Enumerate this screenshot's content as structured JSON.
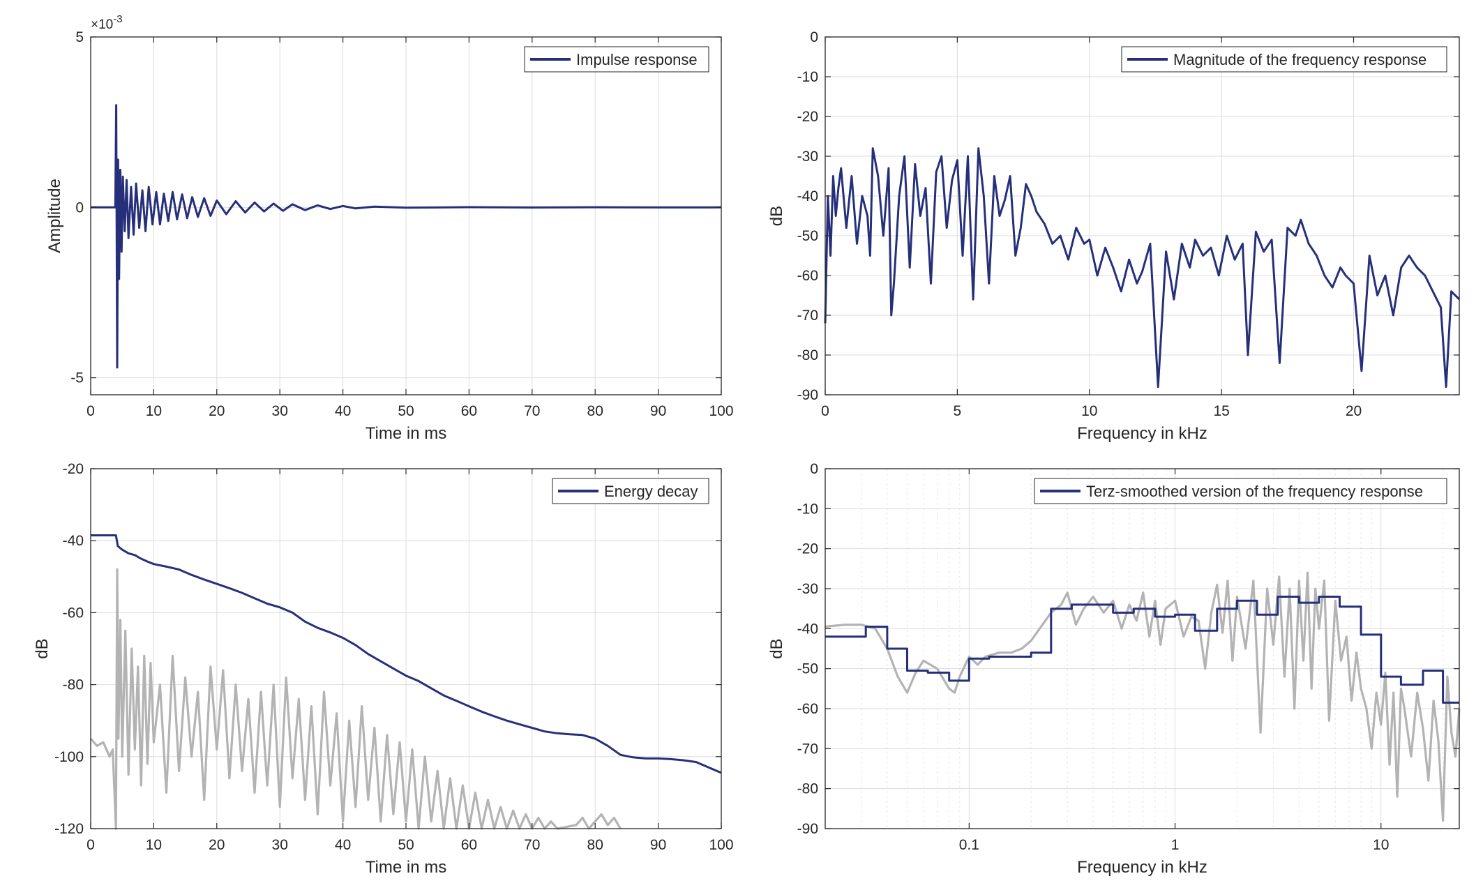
{
  "colors": {
    "series": "#26307a",
    "reference": "#b3b3b3",
    "grid": "#dcdcdc",
    "axis": "#262626"
  },
  "chart_data": [
    {
      "id": "impulse",
      "type": "line",
      "title": "",
      "xlabel": "Time in ms",
      "ylabel": "Amplitude",
      "xscale": "linear",
      "xlim": [
        0,
        100
      ],
      "ylim": [
        -5.5,
        5
      ],
      "xticks": [
        0,
        10,
        20,
        30,
        40,
        50,
        60,
        70,
        80,
        90,
        100
      ],
      "xtick_labels": [
        "0",
        "10",
        "20",
        "30",
        "40",
        "50",
        "60",
        "70",
        "80",
        "90",
        "100"
      ],
      "yticks": [
        -5,
        0,
        5
      ],
      "ytick_labels": [
        "-5",
        "0",
        "5"
      ],
      "y_exponent": "×10",
      "y_exponent_power": "-3",
      "grid": true,
      "legend_loc": "top-right",
      "series": [
        {
          "name": "Impulse response",
          "color": "#26307a",
          "x": [
            0,
            2,
            3.9,
            4.05,
            4.2,
            4.35,
            4.5,
            4.7,
            4.9,
            5.1,
            5.4,
            5.7,
            6.0,
            6.4,
            6.8,
            7.2,
            7.7,
            8.2,
            8.7,
            9.2,
            9.8,
            10.4,
            11.0,
            11.6,
            12.3,
            13.0,
            13.7,
            14.5,
            15.3,
            16.1,
            17.0,
            18.0,
            19.0,
            20.0,
            21.5,
            23.0,
            24.5,
            26.0,
            27.5,
            29.0,
            30.5,
            32.0,
            34.0,
            36.0,
            38.0,
            40.0,
            42.0,
            45.0,
            50.0,
            60.0,
            70.0,
            80.0,
            90.0,
            100.0
          ],
          "y": [
            0,
            0,
            0,
            3.0,
            -4.7,
            1.4,
            -2.1,
            1.1,
            -1.3,
            0.9,
            -0.7,
            0.8,
            -0.9,
            0.6,
            -0.8,
            0.7,
            -0.6,
            0.5,
            -0.7,
            0.6,
            -0.5,
            0.45,
            -0.5,
            0.4,
            -0.4,
            0.45,
            -0.35,
            0.38,
            -0.32,
            0.3,
            -0.28,
            0.27,
            -0.25,
            0.2,
            -0.2,
            0.18,
            -0.15,
            0.14,
            -0.12,
            0.11,
            -0.1,
            0.09,
            -0.08,
            0.06,
            -0.05,
            0.04,
            -0.03,
            0.02,
            -0.01,
            0.005,
            -0.004,
            0.003,
            -0.002,
            0
          ]
        }
      ]
    },
    {
      "id": "magnitude",
      "type": "line",
      "title": "",
      "xlabel": "Frequency in kHz",
      "ylabel": "dB",
      "xscale": "linear",
      "xlim": [
        0,
        24
      ],
      "ylim": [
        -90,
        0
      ],
      "xticks": [
        0,
        5,
        10,
        15,
        20
      ],
      "xtick_labels": [
        "0",
        "5",
        "10",
        "15",
        "20"
      ],
      "yticks": [
        0,
        -10,
        -20,
        -30,
        -40,
        -50,
        -60,
        -70,
        -80,
        -90
      ],
      "ytick_labels": [
        "0",
        "-10",
        "-20",
        "-30",
        "-40",
        "-50",
        "-60",
        "-70",
        "-80",
        "-90"
      ],
      "grid": true,
      "legend_loc": "top-right",
      "series": [
        {
          "name": "Magnitude of the frequency response",
          "color": "#26307a",
          "x": [
            0,
            0.1,
            0.2,
            0.3,
            0.4,
            0.5,
            0.6,
            0.8,
            1.0,
            1.2,
            1.4,
            1.6,
            1.7,
            1.8,
            2.0,
            2.2,
            2.4,
            2.5,
            2.6,
            2.8,
            3.0,
            3.2,
            3.4,
            3.6,
            3.8,
            4.0,
            4.2,
            4.4,
            4.6,
            4.8,
            5.0,
            5.2,
            5.4,
            5.6,
            5.8,
            6.0,
            6.2,
            6.4,
            6.6,
            6.8,
            7.0,
            7.2,
            7.4,
            7.6,
            7.8,
            8.0,
            8.3,
            8.6,
            8.9,
            9.2,
            9.5,
            9.8,
            10.0,
            10.3,
            10.6,
            10.9,
            11.2,
            11.5,
            11.8,
            12.0,
            12.3,
            12.6,
            12.9,
            13.2,
            13.5,
            13.8,
            14.0,
            14.3,
            14.6,
            14.9,
            15.2,
            15.5,
            15.8,
            16.0,
            16.3,
            16.6,
            16.9,
            17.2,
            17.5,
            17.8,
            18.0,
            18.3,
            18.6,
            18.9,
            19.2,
            19.5,
            19.7,
            20.0,
            20.3,
            20.6,
            20.9,
            21.2,
            21.5,
            21.8,
            22.1,
            22.4,
            22.7,
            23.0,
            23.3,
            23.5,
            23.7,
            24.0
          ],
          "y": [
            -72,
            -40,
            -55,
            -35,
            -45,
            -38,
            -33,
            -48,
            -35,
            -52,
            -40,
            -45,
            -55,
            -28,
            -35,
            -50,
            -33,
            -70,
            -62,
            -40,
            -30,
            -58,
            -32,
            -45,
            -38,
            -62,
            -34,
            -30,
            -48,
            -36,
            -31,
            -55,
            -30,
            -66,
            -28,
            -40,
            -62,
            -35,
            -45,
            -41,
            -35,
            -55,
            -48,
            -37,
            -40,
            -44,
            -47,
            -52,
            -50,
            -56,
            -48,
            -52,
            -51,
            -60,
            -53,
            -58,
            -64,
            -56,
            -62,
            -59,
            -52,
            -88,
            -54,
            -66,
            -52,
            -58,
            -51,
            -55,
            -53,
            -60,
            -50,
            -56,
            -52,
            -80,
            -49,
            -54,
            -51,
            -82,
            -48,
            -50,
            -46,
            -52,
            -55,
            -60,
            -63,
            -58,
            -60,
            -62,
            -84,
            -55,
            -65,
            -60,
            -70,
            -58,
            -55,
            -58,
            -60,
            -64,
            -68,
            -88,
            -64,
            -66
          ]
        }
      ]
    },
    {
      "id": "energy",
      "type": "line",
      "title": "",
      "xlabel": "Time in ms",
      "ylabel": "dB",
      "xscale": "linear",
      "xlim": [
        0,
        100
      ],
      "ylim": [
        -120,
        -20
      ],
      "xticks": [
        0,
        10,
        20,
        30,
        40,
        50,
        60,
        70,
        80,
        90,
        100
      ],
      "xtick_labels": [
        "0",
        "10",
        "20",
        "30",
        "40",
        "50",
        "60",
        "70",
        "80",
        "90",
        "100"
      ],
      "yticks": [
        -20,
        -40,
        -60,
        -80,
        -100,
        -120
      ],
      "ytick_labels": [
        "-20",
        "-40",
        "-60",
        "-80",
        "-100",
        "-120"
      ],
      "grid": true,
      "legend_loc": "top-right",
      "series": [
        {
          "name": "",
          "color": "#b3b3b3",
          "x": [
            0,
            1,
            2,
            3,
            3.5,
            4.0,
            4.2,
            4.4,
            4.7,
            5.0,
            5.5,
            6.0,
            6.5,
            7.0,
            7.5,
            8.0,
            8.5,
            9.0,
            9.5,
            10.0,
            11.0,
            12.0,
            13.0,
            14.0,
            15.0,
            16.0,
            17.0,
            18.0,
            19.0,
            20.0,
            21.0,
            22.0,
            23.0,
            24.0,
            25.0,
            26.0,
            27.0,
            28.0,
            29.0,
            30.0,
            31.0,
            32.0,
            33.0,
            34.0,
            35.0,
            36.0,
            37.0,
            38.0,
            39.0,
            40.0,
            41.0,
            42.0,
            43.0,
            44.0,
            45.0,
            46.0,
            47.0,
            48.0,
            49.0,
            50.0,
            51.0,
            52.0,
            53.0,
            54.0,
            55.0,
            56.0,
            57.0,
            58.0,
            59.0,
            60.0,
            61.0,
            62.0,
            63.0,
            64.0,
            65.0,
            66.0,
            67.0,
            68.0,
            69.0,
            70.0,
            71.0,
            72.0,
            73.0,
            74.0,
            77.0,
            78.0,
            79.0,
            80.0,
            81.0,
            82.0,
            83.0,
            84.0
          ],
          "y": [
            -95,
            -97,
            -96,
            -100,
            -98,
            -120,
            -48,
            -95,
            -62,
            -100,
            -65,
            -105,
            -70,
            -98,
            -75,
            -108,
            -72,
            -102,
            -74,
            -96,
            -80,
            -110,
            -72,
            -104,
            -78,
            -100,
            -82,
            -112,
            -75,
            -98,
            -76,
            -106,
            -80,
            -104,
            -84,
            -110,
            -82,
            -108,
            -80,
            -114,
            -78,
            -106,
            -84,
            -112,
            -86,
            -116,
            -82,
            -108,
            -88,
            -118,
            -90,
            -114,
            -86,
            -112,
            -92,
            -118,
            -94,
            -116,
            -96,
            -118,
            -98,
            -120,
            -100,
            -118,
            -104,
            -120,
            -106,
            -120,
            -108,
            -120,
            -110,
            -120,
            -112,
            -120,
            -114,
            -120,
            -115,
            -120,
            -116,
            -120,
            -117,
            -120,
            -118,
            -120,
            -119,
            -117,
            -120,
            -118,
            -116,
            -119,
            -117,
            -120
          ]
        },
        {
          "name": "Energy decay",
          "color": "#26307a",
          "x": [
            0,
            4.0,
            4.3,
            5.0,
            6.0,
            7.0,
            8.0,
            9.0,
            10.0,
            12.0,
            14.0,
            16.0,
            18.0,
            20.0,
            22.0,
            24.0,
            26.0,
            28.0,
            30.0,
            32.0,
            34.0,
            36.0,
            38.0,
            40.0,
            42.0,
            44.0,
            46.0,
            48.0,
            50.0,
            52.0,
            54.0,
            56.0,
            58.0,
            60.0,
            62.0,
            64.0,
            66.0,
            68.0,
            70.0,
            72.0,
            74.0,
            76.0,
            78.0,
            80.0,
            82.0,
            84.0,
            86.0,
            88.0,
            90.0,
            92.0,
            94.0,
            96.0,
            98.0,
            100.0
          ],
          "y": [
            -38.5,
            -38.5,
            -41.5,
            -42.5,
            -43.5,
            -44.0,
            -45.0,
            -45.8,
            -46.5,
            -47.2,
            -48.0,
            -49.5,
            -50.8,
            -52.0,
            -53.2,
            -54.5,
            -56.0,
            -57.5,
            -58.5,
            -60.0,
            -62.5,
            -64.2,
            -65.5,
            -67.0,
            -69.0,
            -71.5,
            -73.5,
            -75.5,
            -77.5,
            -79.0,
            -81.0,
            -83.0,
            -84.5,
            -86.0,
            -87.5,
            -88.8,
            -90.0,
            -91.0,
            -92.0,
            -93.0,
            -93.5,
            -93.8,
            -94.0,
            -95.0,
            -97.0,
            -99.5,
            -100.2,
            -100.5,
            -100.5,
            -100.7,
            -101.0,
            -101.5,
            -103.0,
            -104.5
          ]
        }
      ]
    },
    {
      "id": "terz",
      "type": "line",
      "title": "",
      "xlabel": "Frequency in kHz",
      "ylabel": "dB",
      "xscale": "log",
      "xlim": [
        0.02,
        24
      ],
      "ylim": [
        -90,
        0
      ],
      "xticks": [
        0.1,
        1,
        10
      ],
      "xtick_labels": [
        "0.1",
        "1",
        "10"
      ],
      "yticks": [
        0,
        -10,
        -20,
        -30,
        -40,
        -50,
        -60,
        -70,
        -80,
        -90
      ],
      "ytick_labels": [
        "0",
        "-10",
        "-20",
        "-30",
        "-40",
        "-50",
        "-60",
        "-70",
        "-80",
        "-90"
      ],
      "grid": true,
      "legend_loc": "top-right",
      "series": [
        {
          "name": "",
          "color": "#b3b3b3",
          "x": [
            0.02,
            0.025,
            0.03,
            0.035,
            0.04,
            0.045,
            0.05,
            0.055,
            0.06,
            0.07,
            0.08,
            0.085,
            0.09,
            0.1,
            0.11,
            0.12,
            0.14,
            0.16,
            0.18,
            0.2,
            0.22,
            0.25,
            0.28,
            0.3,
            0.33,
            0.36,
            0.4,
            0.45,
            0.5,
            0.55,
            0.6,
            0.65,
            0.7,
            0.75,
            0.8,
            0.85,
            0.9,
            1.0,
            1.1,
            1.2,
            1.3,
            1.4,
            1.5,
            1.6,
            1.7,
            1.8,
            1.9,
            2.0,
            2.2,
            2.4,
            2.6,
            2.8,
            3.0,
            3.2,
            3.4,
            3.6,
            3.8,
            4.0,
            4.2,
            4.4,
            4.6,
            4.8,
            5.0,
            5.3,
            5.6,
            6.0,
            6.4,
            6.8,
            7.2,
            7.6,
            8.0,
            8.5,
            9.0,
            9.5,
            10.0,
            10.5,
            11.0,
            11.5,
            12.0,
            12.5,
            13.0,
            14.0,
            15.0,
            16.0,
            17.0,
            18.0,
            19.0,
            20.0,
            21.0,
            22.0,
            23.0,
            24.0
          ],
          "y": [
            -39.5,
            -39,
            -39,
            -40,
            -45,
            -52,
            -56,
            -51,
            -48,
            -50,
            -55,
            -56,
            -52,
            -47,
            -49,
            -47,
            -46,
            -46,
            -45,
            -43,
            -40,
            -36,
            -34,
            -31,
            -39,
            -35,
            -32,
            -36,
            -33,
            -40,
            -34,
            -38,
            -31,
            -42,
            -33,
            -44,
            -35,
            -33,
            -42,
            -37,
            -38,
            -50,
            -36,
            -29,
            -41,
            -28,
            -48,
            -32,
            -45,
            -28,
            -66,
            -30,
            -44,
            -27,
            -52,
            -30,
            -60,
            -28,
            -48,
            -26,
            -55,
            -30,
            -40,
            -28,
            -63,
            -33,
            -48,
            -42,
            -58,
            -46,
            -55,
            -60,
            -70,
            -56,
            -64,
            -51,
            -74,
            -56,
            -82,
            -55,
            -60,
            -72,
            -56,
            -65,
            -78,
            -58,
            -68,
            -88,
            -52,
            -66,
            -72,
            -60
          ]
        },
        {
          "name": "Terz-smoothed version of the frequency response",
          "color": "#26307a",
          "x": [
            0.02,
            0.025,
            0.0315,
            0.04,
            0.05,
            0.063,
            0.08,
            0.1,
            0.125,
            0.16,
            0.2,
            0.25,
            0.315,
            0.4,
            0.5,
            0.63,
            0.8,
            1.0,
            1.25,
            1.6,
            2.0,
            2.5,
            3.15,
            4.0,
            5.0,
            6.3,
            8.0,
            10.0,
            12.5,
            16.0,
            20.0,
            24.0
          ],
          "y": [
            -42,
            -42,
            -39.5,
            -45,
            -50.5,
            -51,
            -53,
            -47.5,
            -47,
            -47,
            -46,
            -35,
            -34,
            -34,
            -36,
            -35,
            -37,
            -36.5,
            -40.5,
            -35,
            -33,
            -36.5,
            -32,
            -33.5,
            -32,
            -34.5,
            -41.5,
            -52,
            -54,
            -50.5,
            -58.5,
            -58.5
          ],
          "step": true
        }
      ]
    }
  ]
}
